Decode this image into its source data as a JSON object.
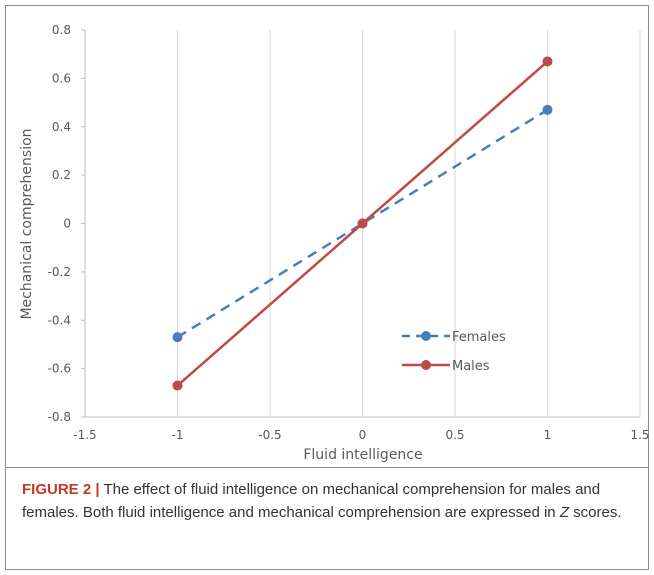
{
  "chart_data": {
    "type": "line",
    "xlabel": "Fluid intelligence",
    "ylabel": "Mechanical comprehension",
    "xlim": [
      -1.5,
      1.5
    ],
    "ylim": [
      -0.8,
      0.8
    ],
    "xticks": [
      "-1.5",
      "-1",
      "-0.5",
      "0",
      "0.5",
      "1",
      "1.5"
    ],
    "yticks": [
      "0.8",
      "0.6",
      "0.4",
      "0.2",
      "0",
      "-0.2",
      "-0.4",
      "-0.6",
      "-0.8"
    ],
    "x": [
      -1,
      0,
      1
    ],
    "grid": "vertical",
    "legend": "inside-lower-right",
    "series": [
      {
        "name": "Females",
        "values": [
          -0.47,
          0.0,
          0.47
        ],
        "color": "#4a7ebb",
        "dash": "dashed"
      },
      {
        "name": "Males",
        "values": [
          -0.67,
          0.0,
          0.67
        ],
        "color": "#be4b48",
        "dash": "solid"
      }
    ]
  },
  "caption": {
    "label": "FIGURE 2 |",
    "text1": " The effect of fluid intelligence on mechanical comprehension for males and females. Both fluid intelligence and mechanical comprehension are expressed in ",
    "z": "Z",
    "text2": " scores."
  }
}
